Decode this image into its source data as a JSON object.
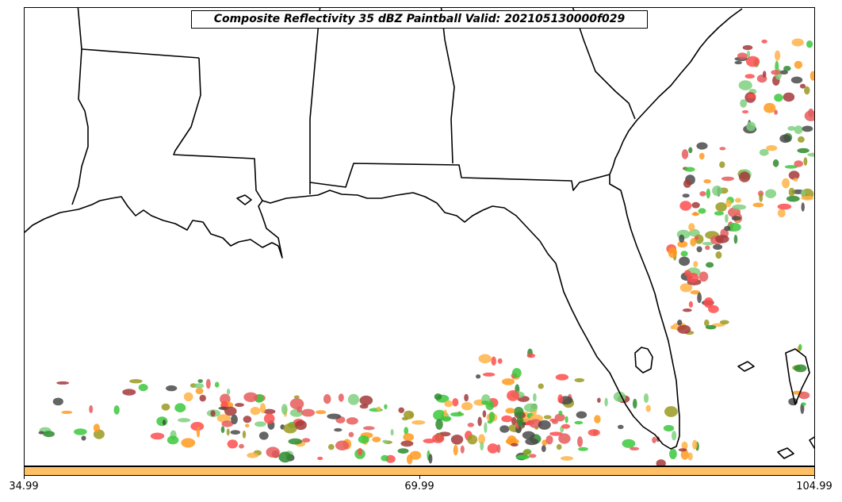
{
  "title": "Composite Reflectivity 35 dBZ Paintball Valid: 202105130000f029",
  "colorbar": {
    "color": "#FFC065",
    "ticks": [
      "34.99",
      "69.99",
      "104.99"
    ]
  },
  "colors": {
    "member_colors": [
      "#FF4D4D",
      "#FF9A1F",
      "#3CC83C",
      "#2E8B2E",
      "#9A9A22",
      "#A33A3A",
      "#4A4A4A",
      "#FFB347",
      "#E65C5C",
      "#7FD07F"
    ]
  }
}
